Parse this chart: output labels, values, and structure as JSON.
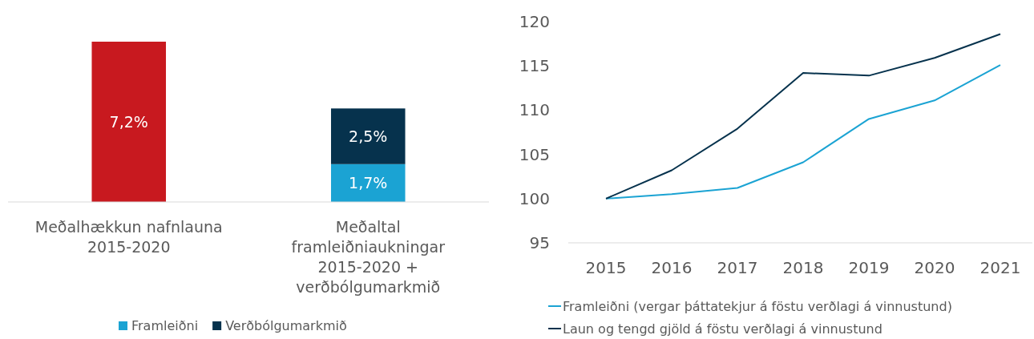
{
  "chart_data": [
    {
      "type": "bar",
      "stacked": true,
      "categories": [
        "Meðalhækkun nafnlauna 2015-2020",
        "Meðaltal framleiðniaukningar 2015-2020 + verðbólgumarkmið"
      ],
      "legend": "bottom",
      "series": [
        {
          "color": "#c8191f",
          "values": [
            7.2,
            null
          ],
          "value_labels": [
            "7,2%",
            null
          ]
        },
        {
          "name": "Framleiðni",
          "color": "#1ba3d3",
          "values": [
            null,
            1.7
          ],
          "value_labels": [
            null,
            "1,7%"
          ]
        },
        {
          "name": "Verðbólgumarkmið",
          "color": "#06324d",
          "values": [
            null,
            2.5
          ],
          "value_labels": [
            null,
            "2,5%"
          ]
        }
      ]
    },
    {
      "type": "line",
      "categories": [
        "2015",
        "2016",
        "2017",
        "2018",
        "2019",
        "2020",
        "2021"
      ],
      "ylim": [
        95,
        120
      ],
      "yticks": [
        95,
        100,
        105,
        110,
        115,
        120
      ],
      "grid": false,
      "legend": "bottom",
      "series": [
        {
          "name": "Framleiðni (vergar þáttatekjur á föstu verðlagi á vinnustund)",
          "color": "#1ba3d3",
          "values": [
            100,
            100.5,
            101.2,
            104.1,
            109.0,
            111.1,
            115.1
          ]
        },
        {
          "name": "Laun og tengd gjöld á föstu verðlagi á vinnustund",
          "color": "#06324d",
          "values": [
            100,
            103.2,
            107.9,
            114.2,
            113.9,
            115.9,
            118.6
          ]
        }
      ]
    }
  ]
}
